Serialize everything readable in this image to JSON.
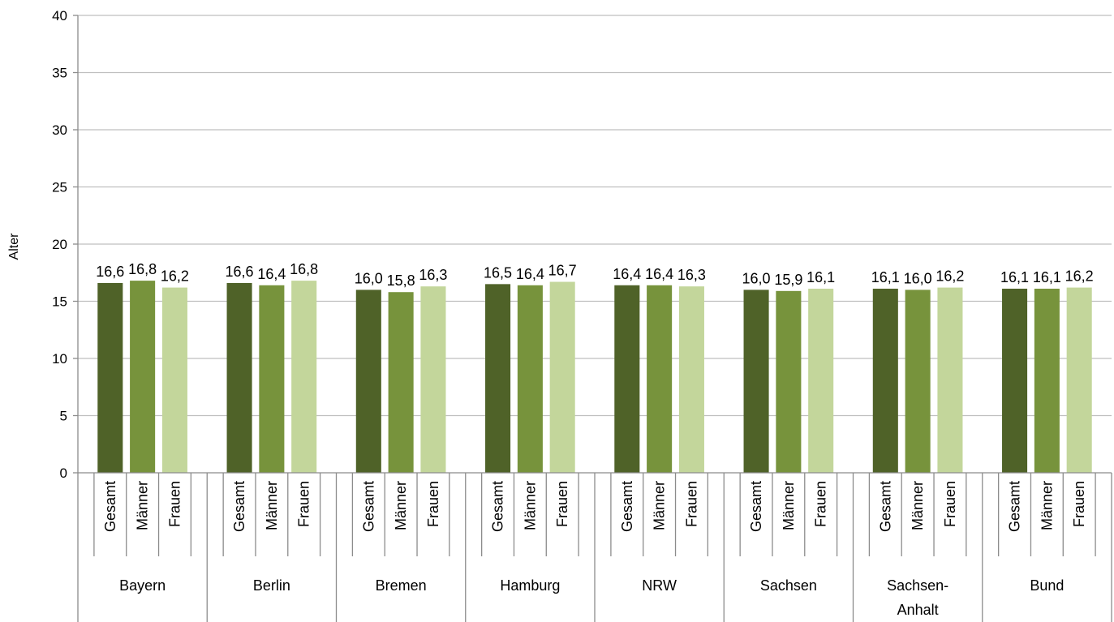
{
  "chart_data": {
    "type": "bar",
    "ylabel": "Alter",
    "xlabel": "",
    "title": "",
    "ylim": [
      0,
      40
    ],
    "yticks": [
      0,
      5,
      10,
      15,
      20,
      25,
      30,
      35,
      40
    ],
    "grid": true,
    "legend": "none",
    "subcategories": [
      "Gesamt",
      "Männer",
      "Frauen"
    ],
    "groups": [
      {
        "label": [
          "Bayern"
        ],
        "values": [
          16.6,
          16.8,
          16.2
        ],
        "labels": [
          "16,6",
          "16,8",
          "16,2"
        ]
      },
      {
        "label": [
          "Berlin"
        ],
        "values": [
          16.6,
          16.4,
          16.8
        ],
        "labels": [
          "16,6",
          "16,4",
          "16,8"
        ]
      },
      {
        "label": [
          "Bremen"
        ],
        "values": [
          16.0,
          15.8,
          16.3
        ],
        "labels": [
          "16,0",
          "15,8",
          "16,3"
        ]
      },
      {
        "label": [
          "Hamburg"
        ],
        "values": [
          16.5,
          16.4,
          16.7
        ],
        "labels": [
          "16,5",
          "16,4",
          "16,7"
        ]
      },
      {
        "label": [
          "NRW"
        ],
        "values": [
          16.4,
          16.4,
          16.3
        ],
        "labels": [
          "16,4",
          "16,4",
          "16,3"
        ]
      },
      {
        "label": [
          "Sachsen"
        ],
        "values": [
          16.0,
          15.9,
          16.1
        ],
        "labels": [
          "16,0",
          "15,9",
          "16,1"
        ]
      },
      {
        "label": [
          "Sachsen-",
          "Anhalt"
        ],
        "values": [
          16.1,
          16.0,
          16.2
        ],
        "labels": [
          "16,1",
          "16,0",
          "16,2"
        ]
      },
      {
        "label": [
          "Bund"
        ],
        "values": [
          16.1,
          16.1,
          16.2
        ],
        "labels": [
          "16,1",
          "16,1",
          "16,2"
        ]
      }
    ],
    "colors": [
      "#4f6228",
      "#77933c",
      "#c3d69b"
    ],
    "grid_color": "#bfbfbf",
    "axis_color": "#8c8c8c"
  }
}
